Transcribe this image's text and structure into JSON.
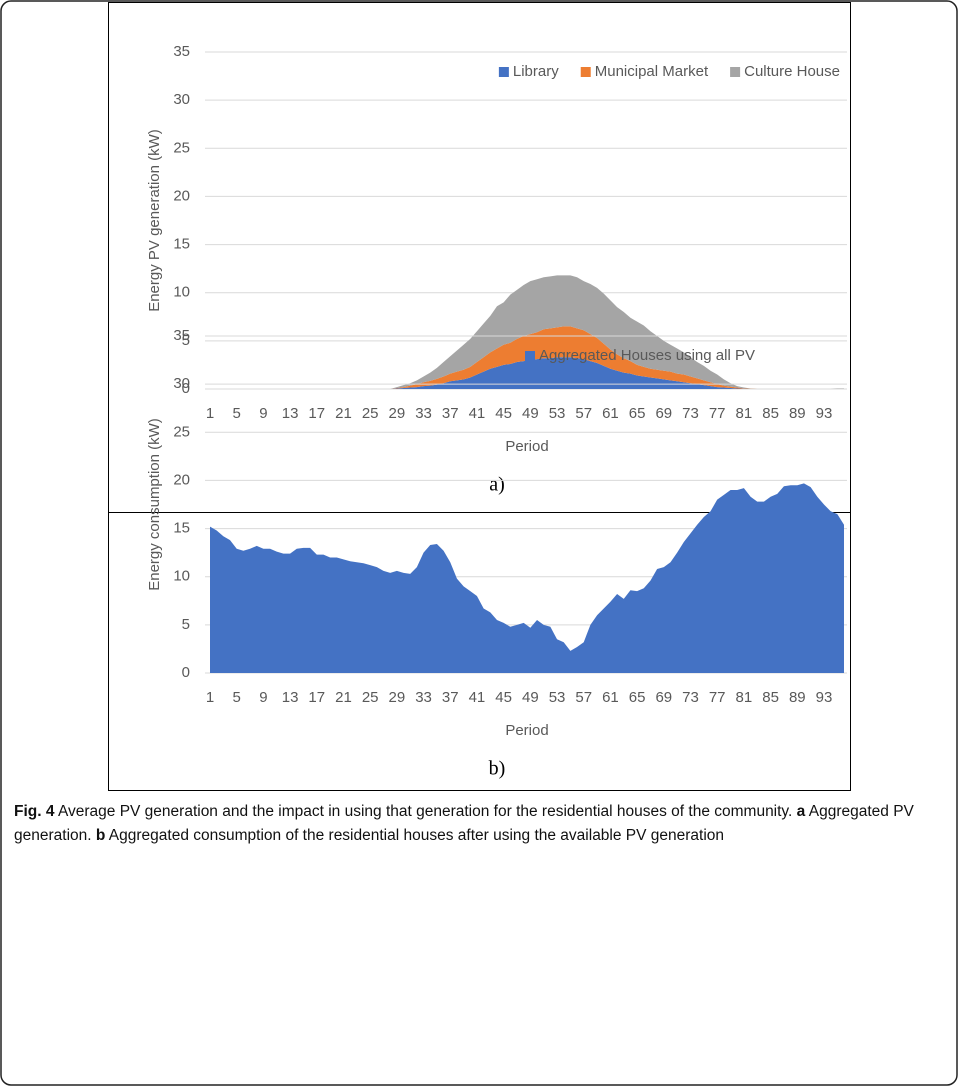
{
  "chart_data": [
    {
      "type": "area",
      "stacked": true,
      "label": "a)",
      "y_label": "Energy PV generation (kW)",
      "x_label": "Period",
      "categories": [
        1,
        null,
        null,
        null,
        5,
        null,
        null,
        null,
        9,
        null,
        null,
        null,
        13,
        null,
        null,
        null,
        17,
        null,
        null,
        null,
        21,
        null,
        null,
        null,
        25,
        null,
        null,
        null,
        29,
        null,
        null,
        null,
        33,
        null,
        null,
        null,
        37,
        null,
        null,
        null,
        41,
        null,
        null,
        null,
        45,
        null,
        null,
        null,
        49,
        null,
        null,
        null,
        53,
        null,
        null,
        null,
        57,
        null,
        null,
        null,
        61,
        null,
        null,
        null,
        65,
        null,
        null,
        null,
        69,
        null,
        null,
        null,
        73,
        null,
        null,
        null,
        77,
        null,
        null,
        null,
        81,
        null,
        null,
        null,
        85,
        null,
        null,
        null,
        89,
        null,
        null,
        null,
        93,
        null,
        null,
        null
      ],
      "series": [
        {
          "name": "Library",
          "color": "#4472c4",
          "values": [
            0,
            0,
            0,
            0,
            0,
            0,
            0,
            0,
            0,
            0,
            0,
            0,
            0,
            0,
            0,
            0,
            0,
            0,
            0,
            0,
            0,
            0,
            0,
            0,
            0,
            0,
            0,
            0,
            0.05,
            0.1,
            0.15,
            0.2,
            0.3,
            0.35,
            0.45,
            0.6,
            0.8,
            0.9,
            1.0,
            1.2,
            1.5,
            1.8,
            2.1,
            2.3,
            2.5,
            2.6,
            2.8,
            2.9,
            3.0,
            3.1,
            3.2,
            3.2,
            3.3,
            3.3,
            3.3,
            3.2,
            3.1,
            2.9,
            2.7,
            2.4,
            2.1,
            1.9,
            1.7,
            1.6,
            1.4,
            1.3,
            1.2,
            1.1,
            1.0,
            0.9,
            0.8,
            0.7,
            0.6,
            0.5,
            0.4,
            0.3,
            0.2,
            0.15,
            0.1,
            0.05,
            0.02,
            0,
            0,
            0,
            0,
            0,
            0,
            0,
            0,
            0,
            0,
            0,
            0,
            0,
            0,
            0
          ]
        },
        {
          "name": "Municipal Market",
          "color": "#ed7d31",
          "values": [
            0,
            0,
            0,
            0,
            0,
            0,
            0,
            0,
            0,
            0,
            0,
            0,
            0,
            0,
            0,
            0,
            0,
            0,
            0,
            0,
            0,
            0,
            0,
            0,
            0,
            0,
            0,
            0,
            0.05,
            0.1,
            0.2,
            0.3,
            0.4,
            0.5,
            0.6,
            0.7,
            0.8,
            0.9,
            1.0,
            1.1,
            1.3,
            1.5,
            1.7,
            1.9,
            2.1,
            2.2,
            2.4,
            2.6,
            2.7,
            2.8,
            3.0,
            3.1,
            3.1,
            3.2,
            3.2,
            3.1,
            3.0,
            2.8,
            2.6,
            2.3,
            2.0,
            1.7,
            1.5,
            1.3,
            1.1,
            1.0,
            0.9,
            0.9,
            0.9,
            0.9,
            0.8,
            0.8,
            0.7,
            0.6,
            0.5,
            0.4,
            0.3,
            0.2,
            0.15,
            0.1,
            0.05,
            0.02,
            0,
            0,
            0,
            0,
            0,
            0,
            0,
            0,
            0,
            0,
            0,
            0,
            0,
            0
          ]
        },
        {
          "name": "Culture House",
          "color": "#a5a5a5",
          "values": [
            0,
            0,
            0,
            0,
            0,
            0,
            0,
            0,
            0,
            0,
            0,
            0,
            0,
            0,
            0,
            0,
            0,
            0,
            0,
            0,
            0,
            0,
            0,
            0,
            0,
            0,
            0,
            0,
            0.1,
            0.2,
            0.25,
            0.4,
            0.6,
            0.85,
            1.15,
            1.5,
            1.8,
            2.2,
            2.6,
            2.9,
            3.2,
            3.5,
            3.8,
            4.4,
            4.4,
            5.0,
            5.1,
            5.3,
            5.5,
            5.5,
            5.4,
            5.4,
            5.4,
            5.3,
            5.3,
            5.3,
            5.1,
            5.2,
            5.2,
            5.2,
            5.1,
            4.9,
            4.8,
            4.5,
            4.5,
            4.3,
            3.9,
            3.5,
            3.1,
            2.8,
            2.6,
            2.3,
            2.0,
            1.7,
            1.5,
            1.2,
            1.0,
            0.65,
            0.35,
            0.15,
            0.08,
            0.03,
            0,
            0,
            0,
            0,
            0,
            0,
            0,
            0,
            0,
            0,
            0,
            0,
            0.05,
            0.05
          ]
        }
      ],
      "ylim": [
        0,
        35
      ],
      "yticks": [
        0,
        5,
        10,
        15,
        20,
        25,
        30,
        35
      ],
      "grid": true,
      "legend": "top-right"
    },
    {
      "type": "area",
      "stacked": false,
      "label": "b)",
      "y_label": "Energy consumption  (kW)",
      "x_label": "Period",
      "categories": [
        1,
        null,
        null,
        null,
        5,
        null,
        null,
        null,
        9,
        null,
        null,
        null,
        13,
        null,
        null,
        null,
        17,
        null,
        null,
        null,
        21,
        null,
        null,
        null,
        25,
        null,
        null,
        null,
        29,
        null,
        null,
        null,
        33,
        null,
        null,
        null,
        37,
        null,
        null,
        null,
        41,
        null,
        null,
        null,
        45,
        null,
        null,
        null,
        49,
        null,
        null,
        null,
        53,
        null,
        null,
        null,
        57,
        null,
        null,
        null,
        61,
        null,
        null,
        null,
        65,
        null,
        null,
        null,
        69,
        null,
        null,
        null,
        73,
        null,
        null,
        null,
        77,
        null,
        null,
        null,
        81,
        null,
        null,
        null,
        85,
        null,
        null,
        null,
        89,
        null,
        null,
        null,
        93,
        null,
        null,
        null
      ],
      "series": [
        {
          "name": "Aggregated Houses using all PV",
          "color": "#4472c4",
          "values": [
            15.2,
            14.8,
            14.2,
            13.8,
            12.9,
            12.7,
            12.9,
            13.2,
            12.9,
            12.9,
            12.6,
            12.4,
            12.4,
            12.9,
            13.0,
            13.0,
            12.3,
            12.3,
            12.0,
            12.0,
            11.8,
            11.6,
            11.5,
            11.4,
            11.2,
            11.0,
            10.6,
            10.4,
            10.6,
            10.4,
            10.3,
            11.0,
            12.5,
            13.3,
            13.4,
            12.7,
            11.5,
            9.8,
            9.0,
            8.5,
            8.0,
            6.7,
            6.3,
            5.5,
            5.2,
            4.8,
            5.0,
            5.2,
            4.7,
            5.5,
            5.0,
            4.8,
            3.5,
            3.2,
            2.3,
            2.7,
            3.2,
            5.0,
            6.0,
            6.7,
            7.4,
            8.2,
            7.7,
            8.6,
            8.5,
            8.8,
            9.6,
            10.8,
            11.0,
            11.5,
            12.5,
            13.6,
            14.5,
            15.4,
            16.2,
            16.8,
            18.0,
            18.5,
            19.0,
            19.0,
            19.2,
            18.3,
            17.8,
            17.8,
            18.3,
            18.6,
            19.4,
            19.5,
            19.5,
            19.7,
            19.3,
            18.3,
            17.5,
            16.8,
            16.5,
            15.4
          ]
        }
      ],
      "ylim": [
        0,
        35
      ],
      "yticks": [
        0,
        5,
        10,
        15,
        20,
        25,
        30,
        35
      ],
      "grid": true,
      "legend": "top"
    }
  ],
  "caption": {
    "label": "Fig. 4",
    "text": "Average PV generation and the impact in using that generation for the residential houses of the community.",
    "parts": [
      {
        "label": "a",
        "text": "Aggregated PV generation."
      },
      {
        "label": "b",
        "text": "Aggregated consumption of the residential houses after using the available PV generation"
      }
    ]
  }
}
